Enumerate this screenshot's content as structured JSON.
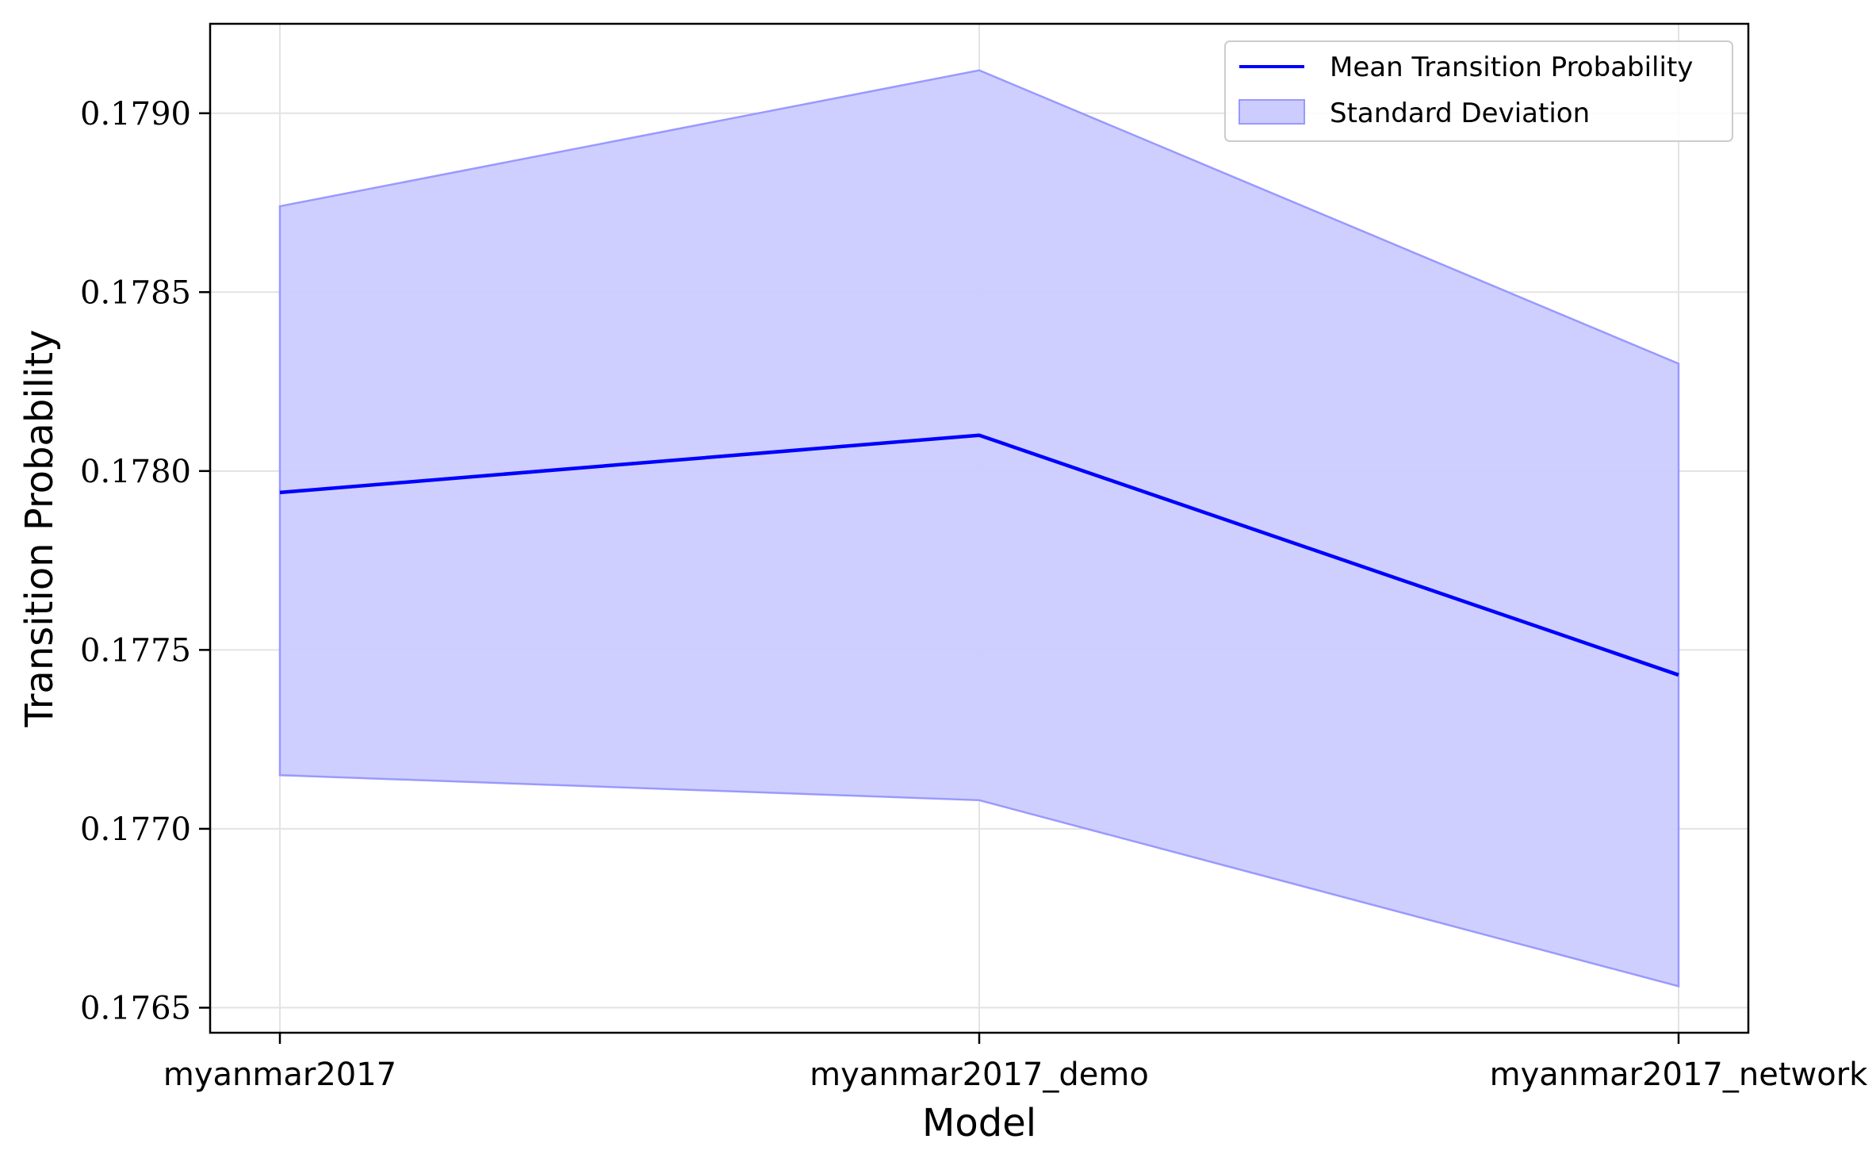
{
  "chart_data": {
    "type": "line",
    "categories": [
      "myanmar2017",
      "myanmar2017_demo",
      "myanmar2017_network"
    ],
    "series": [
      {
        "name": "Mean Transition Probability",
        "values": [
          0.17794,
          0.1781,
          0.17743
        ],
        "color": "#0000ff"
      }
    ],
    "band": {
      "name": "Standard Deviation",
      "upper": [
        0.17874,
        0.17912,
        0.1783
      ],
      "lower": [
        0.17715,
        0.17708,
        0.17656
      ],
      "color": "#ccccff",
      "edge_color": "#9999ff"
    },
    "xlabel": "Model",
    "ylabel": "Transition Probability",
    "ylim": [
      0.17643,
      0.17925
    ],
    "yticks": [
      0.1765,
      0.177,
      0.1775,
      0.178,
      0.1785,
      0.179
    ],
    "ytick_labels": [
      "0.1765",
      "0.1770",
      "0.1775",
      "0.1780",
      "0.1785",
      "0.1790"
    ],
    "grid": true,
    "legend_position": "top-right"
  }
}
